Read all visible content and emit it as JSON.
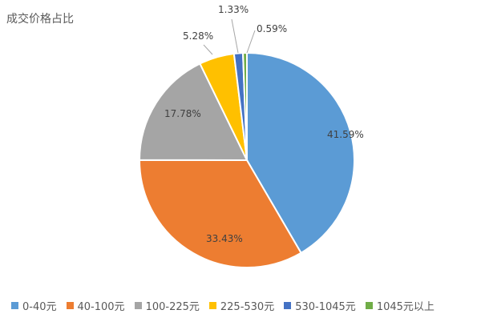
{
  "chart_data": {
    "type": "pie",
    "title": "成交价格占比",
    "categories": [
      "0-40元",
      "40-100元",
      "100-225元",
      "225-530元",
      "530-1045元",
      "1045元以上"
    ],
    "values": [
      41.59,
      33.43,
      17.78,
      5.28,
      1.33,
      0.59
    ],
    "data_labels": [
      "41.59%",
      "33.43%",
      "17.78%",
      "5.28%",
      "1.33%",
      "0.59%"
    ],
    "colors": [
      "#5B9BD5",
      "#ED7D31",
      "#A5A5A5",
      "#FFC000",
      "#4472C4",
      "#70AD47"
    ],
    "legend_position": "bottom",
    "start_angle": "12 o'clock",
    "direction": "clockwise"
  }
}
